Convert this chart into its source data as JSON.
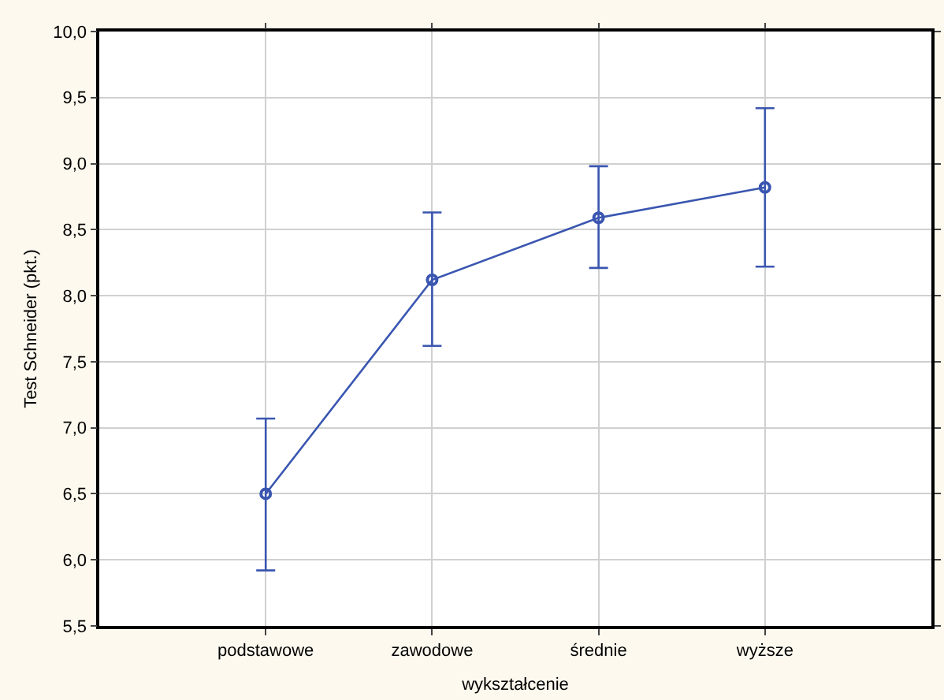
{
  "chart_data": {
    "type": "line",
    "xlabel": "wykształcenie",
    "ylabel": "Test Schneider (pkt.)",
    "categories": [
      "podstawowe",
      "zawodowe",
      "średnie",
      "wyższe"
    ],
    "series": [
      {
        "color": "#3a56b0",
        "values": [
          6.5,
          8.12,
          8.59,
          8.82
        ],
        "errors": [
          [
            5.92,
            7.07
          ],
          [
            7.62,
            8.63
          ],
          [
            8.21,
            8.98
          ],
          [
            8.22,
            9.42
          ]
        ]
      }
    ],
    "ylim": [
      5.5,
      10.0
    ],
    "yticks": [
      {
        "value": 5.5,
        "label": "5,5"
      },
      {
        "value": 6.0,
        "label": "6,0"
      },
      {
        "value": 6.5,
        "label": "6,5"
      },
      {
        "value": 7.0,
        "label": "7,0"
      },
      {
        "value": 7.5,
        "label": "7,5"
      },
      {
        "value": 8.0,
        "label": "8,0"
      },
      {
        "value": 8.5,
        "label": "8,5"
      },
      {
        "value": 9.0,
        "label": "9,0"
      },
      {
        "value": 9.5,
        "label": "9,5"
      },
      {
        "value": 10.0,
        "label": "10,0"
      }
    ],
    "grid": true,
    "marker": "circle",
    "line_style": "solid"
  }
}
